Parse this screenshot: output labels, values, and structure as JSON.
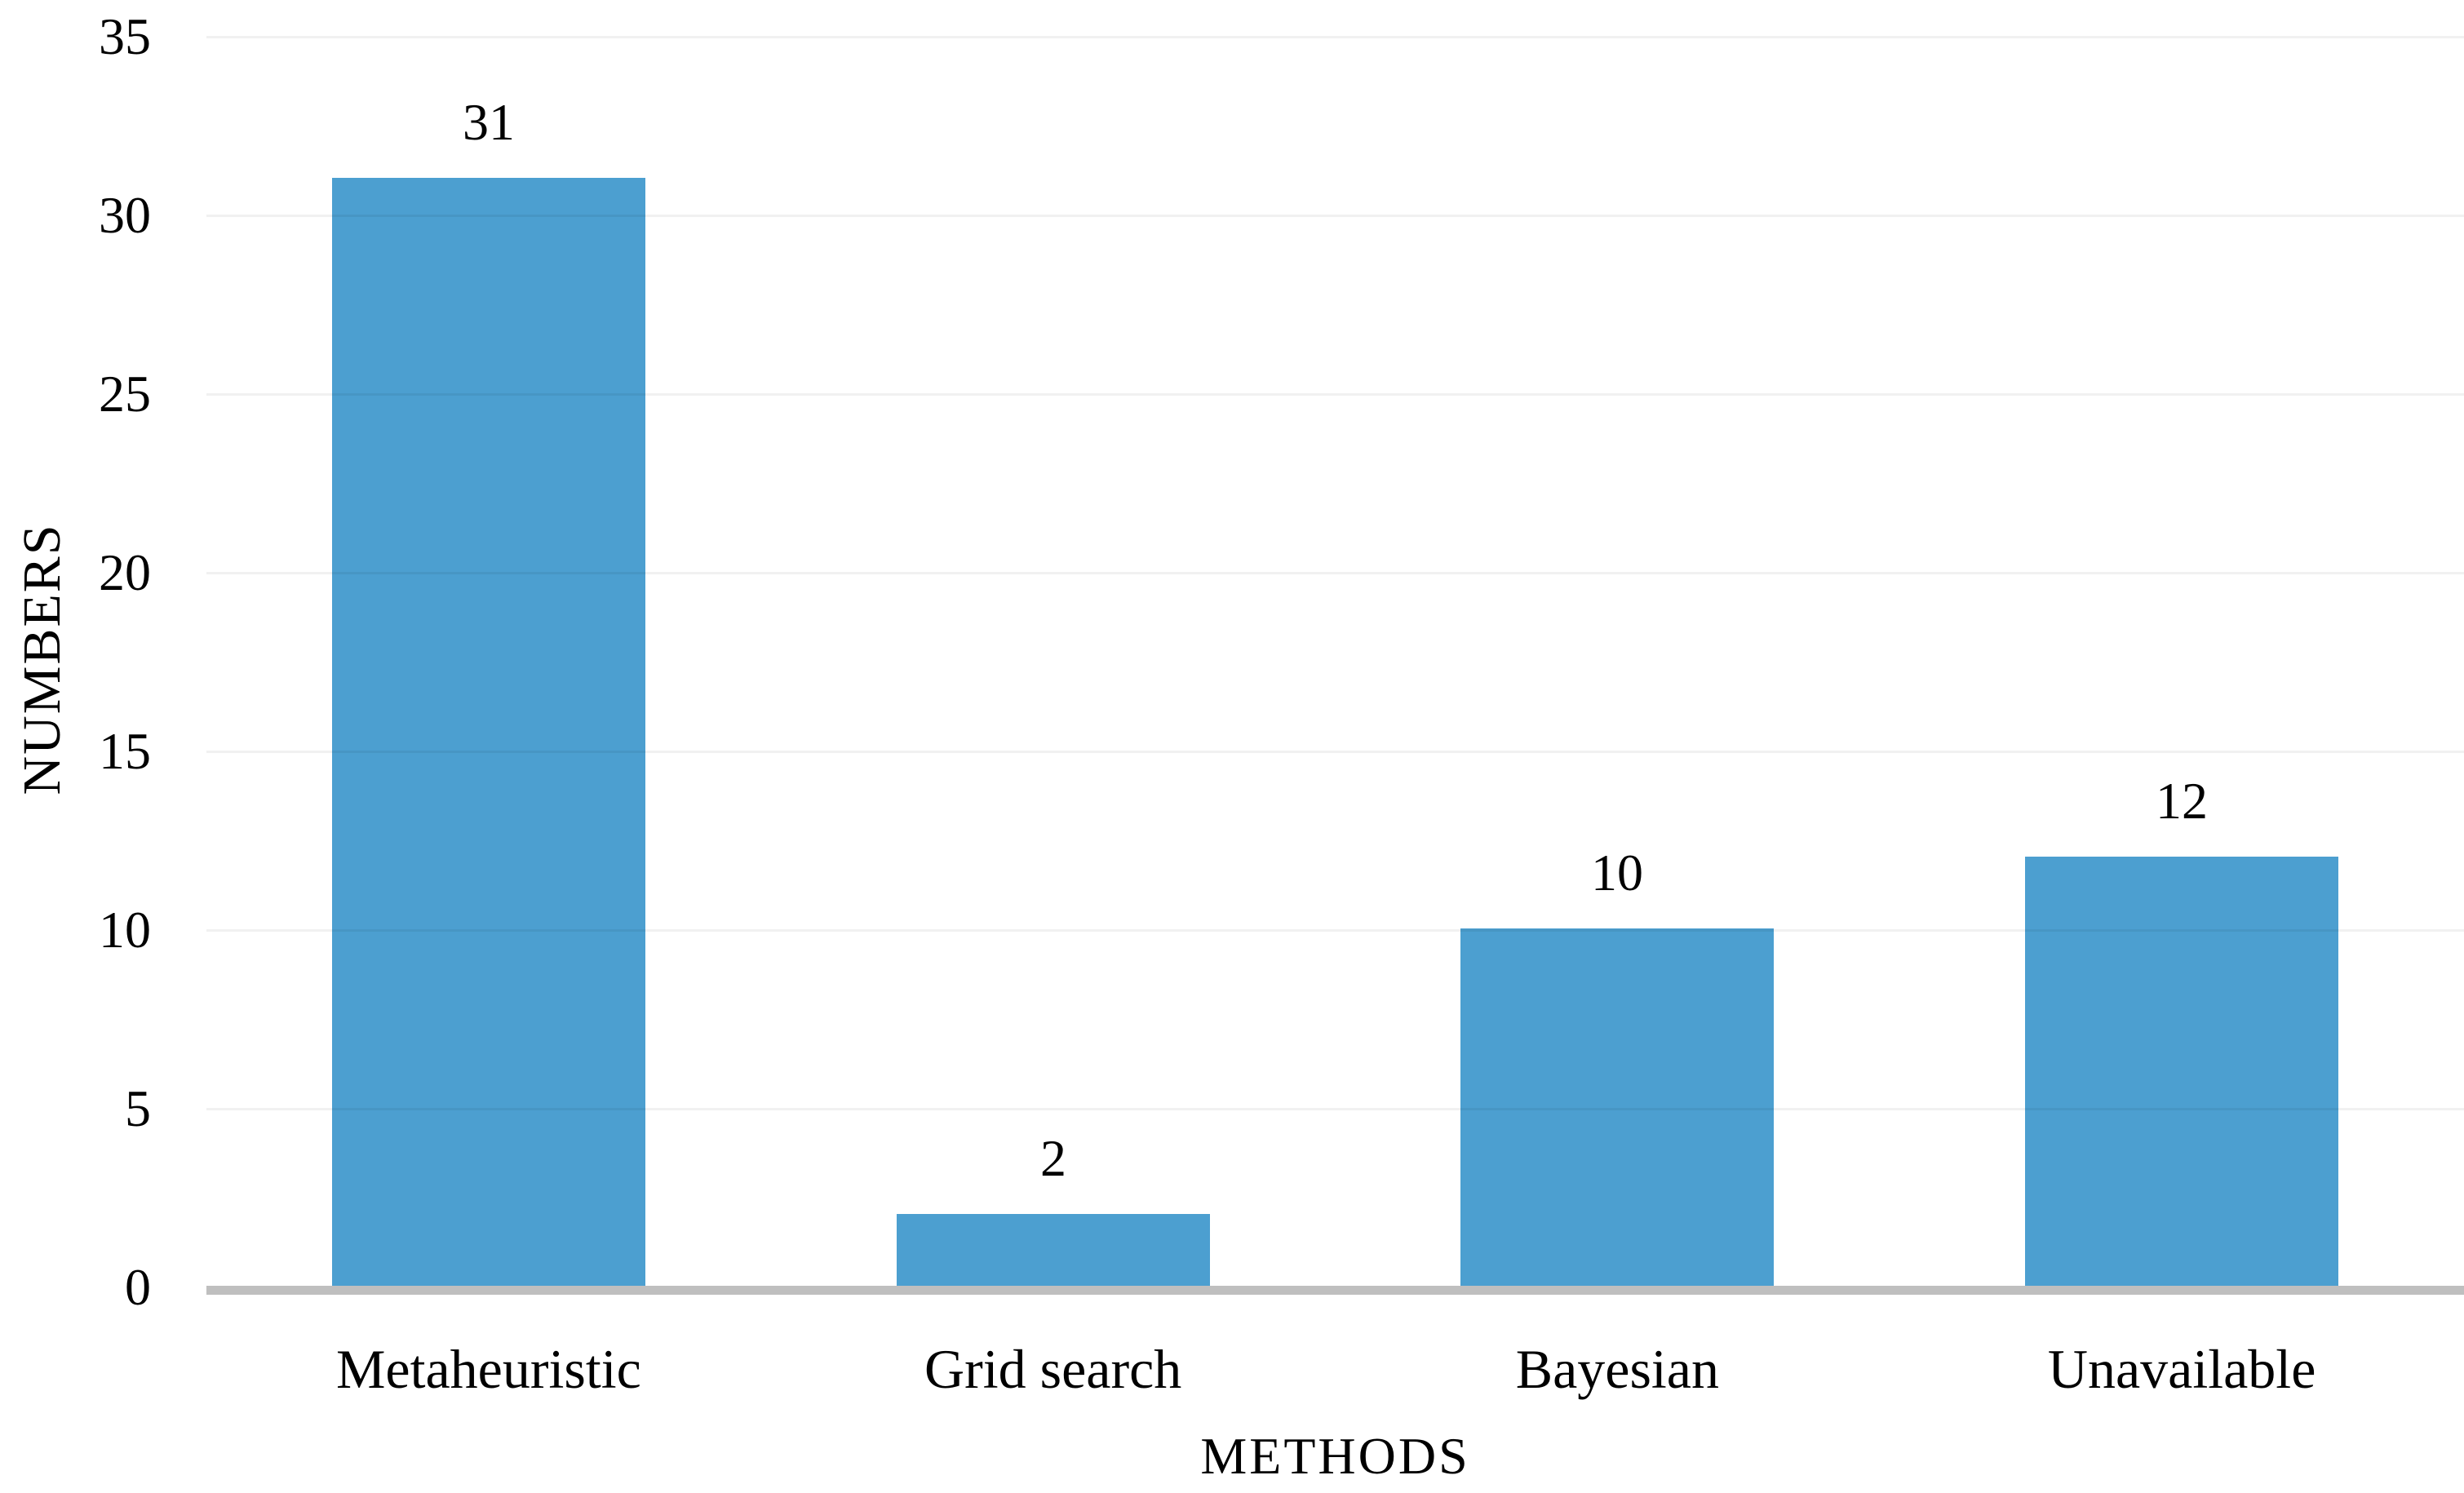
{
  "chart_data": {
    "type": "bar",
    "title": "",
    "categories": [
      "Metaheuristic",
      "Grid search",
      "Bayesian",
      "Unavailable"
    ],
    "values": [
      31,
      2,
      10,
      12
    ],
    "data_labels": [
      "31",
      "2",
      "10",
      "12"
    ],
    "xlabel": "METHODS",
    "ylabel": "NUMBERS",
    "ylim": [
      0,
      35
    ],
    "yticks": [
      0,
      5,
      10,
      15,
      20,
      25,
      30,
      35
    ],
    "grid": "horizontal-light",
    "legend": "none",
    "colors": {
      "bar_fill": "#4C9FD0",
      "axis_baseline": "#BFBFBF",
      "gridline": "#F2F2F2",
      "text": "#000000",
      "background": "#FFFFFF"
    }
  }
}
